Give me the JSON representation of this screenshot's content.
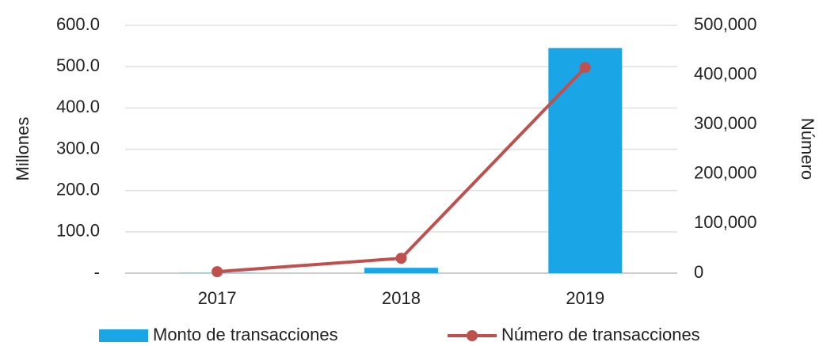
{
  "chart_data": {
    "type": "combo",
    "categories": [
      "2017",
      "2018",
      "2019"
    ],
    "ylabel": "Millones",
    "y2label": "Número",
    "ylim": [
      0,
      600
    ],
    "yticks": [
      {
        "value": 0,
        "label": "-"
      },
      {
        "value": 100,
        "label": "100.0"
      },
      {
        "value": 200,
        "label": "200.0"
      },
      {
        "value": 300,
        "label": "300.0"
      },
      {
        "value": 400,
        "label": "400.0"
      },
      {
        "value": 500,
        "label": "500.0"
      },
      {
        "value": 600,
        "label": "600.0"
      }
    ],
    "y2lim": [
      0,
      500000
    ],
    "y2ticks": [
      0,
      {
        "value": 100000,
        "label": "100,000"
      },
      {
        "value": 200000,
        "label": "200,000"
      },
      {
        "value": 300000,
        "label": "300,000"
      },
      {
        "value": 400000,
        "label": "400,000"
      },
      {
        "value": 500000,
        "label": "500,000"
      }
    ],
    "grid": true,
    "series": [
      {
        "name": "Monto de transacciones",
        "type": "bar",
        "color": "#1aa6e6",
        "values": [
          0.5,
          13,
          545
        ]
      },
      {
        "name": "Número de transacciones",
        "type": "line",
        "axis": "y2",
        "color": "#c0504d",
        "values": [
          3000,
          30000,
          415000
        ]
      }
    ]
  }
}
